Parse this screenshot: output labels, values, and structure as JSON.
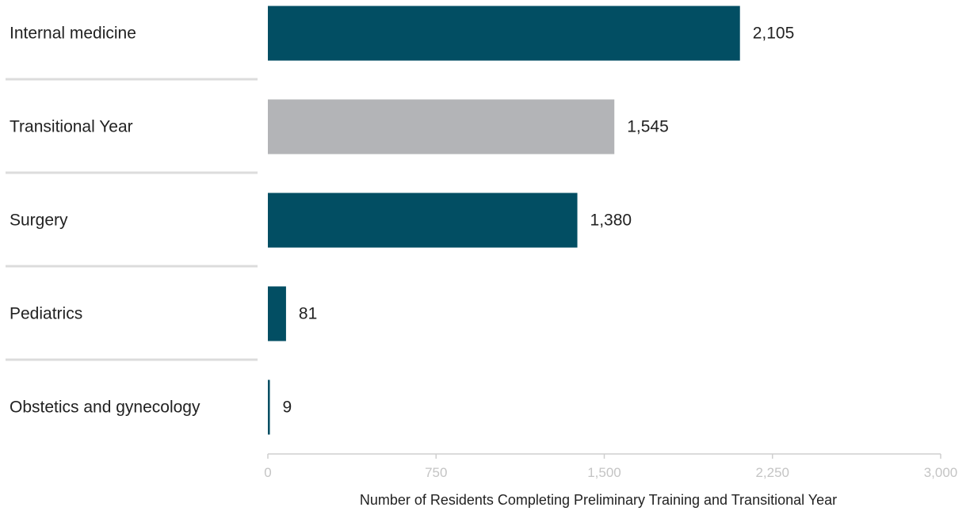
{
  "chart_data": {
    "type": "bar",
    "orientation": "horizontal",
    "categories": [
      "Internal medicine",
      "Transitional Year",
      "Surgery",
      "Pediatrics",
      "Obstetics and gynecology"
    ],
    "values": [
      2105,
      1545,
      1380,
      81,
      9
    ],
    "value_labels": [
      "2,105",
      "1,545",
      "1,380",
      "81",
      "9"
    ],
    "bar_colors": [
      "#024e63",
      "#b3b4b7",
      "#024e63",
      "#024e63",
      "#024e63"
    ],
    "xlabel": "Number of Residents Completing Preliminary Training and Transitional Year",
    "xlim": [
      0,
      3000
    ],
    "x_ticks": [
      0,
      750,
      1500,
      2250,
      3000
    ],
    "x_tick_labels": [
      "0",
      "750",
      "1,500",
      "2,250",
      "3,000"
    ],
    "grid": false,
    "legend": "none"
  },
  "colors": {
    "primary_bar": "#024e63",
    "highlight_bar": "#b3b4b7",
    "separator": "#dcdcdc",
    "axis": "#cfcfcf",
    "tick_text": "#c4c4c4",
    "text": "#222222"
  }
}
